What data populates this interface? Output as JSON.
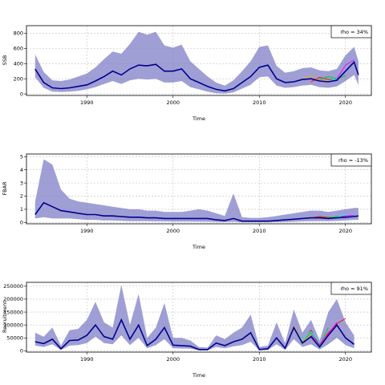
{
  "colors": {
    "band": "#7f7fc8",
    "median": "#00008b",
    "grid": "#bfbfbf",
    "peels": [
      "#ff0000",
      "#00cd00",
      "#00ffff",
      "#ff00ff",
      "#ffa500",
      "#9400d3"
    ]
  },
  "chart_data": [
    {
      "type": "line",
      "ylabel": "SSB",
      "xlabel": "Time",
      "rho_label": "rho = 34%",
      "xlim": [
        1983,
        2023
      ],
      "ylim": [
        -20,
        900
      ],
      "xticks": [
        "1990",
        "2000",
        "2010",
        "2020"
      ],
      "yticks": [
        "0",
        "200",
        "400",
        "600",
        "800"
      ],
      "legend_position": "top-right",
      "grid": true,
      "series": [
        {
          "x": [
            1984.0,
            1985.0,
            1986.0,
            1987.0,
            1988.0,
            1989.0,
            1990.0,
            1991.0,
            1992.0,
            1993.0,
            1994.0,
            1995.0,
            1996.0,
            1997.0,
            1998.0,
            1999.0,
            2000.0,
            2001.0,
            2002.0,
            2003.0,
            2004.0,
            2005.0,
            2006.0,
            2007.0,
            2008.0,
            2009.0,
            2010.0,
            2011.0,
            2012.0,
            2013.0,
            2014.0,
            2015.0,
            2016.0,
            2017.0,
            2018.0,
            2019.0,
            2020.0,
            2021.0,
            2021.5
          ],
          "median": [
            330,
            150,
            80,
            70,
            80,
            100,
            120,
            170,
            230,
            300,
            250,
            330,
            380,
            370,
            390,
            300,
            300,
            330,
            200,
            150,
            100,
            60,
            40,
            70,
            150,
            230,
            350,
            380,
            200,
            150,
            160,
            190,
            200,
            170,
            160,
            180,
            300,
            420,
            250
          ],
          "upper": [
            520,
            290,
            180,
            170,
            190,
            230,
            270,
            350,
            460,
            560,
            530,
            660,
            820,
            780,
            820,
            640,
            610,
            650,
            430,
            330,
            230,
            150,
            110,
            180,
            300,
            430,
            620,
            640,
            370,
            280,
            300,
            340,
            350,
            310,
            300,
            330,
            510,
            620,
            430
          ],
          "lower": [
            220,
            80,
            30,
            25,
            30,
            40,
            60,
            90,
            130,
            170,
            130,
            180,
            200,
            190,
            200,
            150,
            150,
            170,
            90,
            60,
            30,
            10,
            5,
            20,
            70,
            120,
            220,
            230,
            110,
            80,
            90,
            110,
            120,
            90,
            80,
            100,
            170,
            250,
            120
          ]
        }
      ],
      "peels": [
        {
          "x": [
            2016.0,
            2017.0,
            2018.0,
            2019.0
          ],
          "values": [
            160,
            220,
            190,
            200
          ]
        },
        {
          "x": [
            2017.0,
            2018.0,
            2019.0,
            2020.0
          ],
          "values": [
            190,
            230,
            200,
            240
          ]
        },
        {
          "x": [
            2018.0,
            2019.0,
            2020.0
          ],
          "values": [
            210,
            190,
            300
          ]
        },
        {
          "x": [
            2019.0,
            2020.0,
            2021.0
          ],
          "values": [
            200,
            380,
            450
          ]
        },
        {
          "x": [
            2015.0,
            2016.0,
            2017.0,
            2018.0
          ],
          "values": [
            200,
            240,
            170,
            180
          ]
        }
      ]
    },
    {
      "type": "line",
      "ylabel": "FBAR",
      "xlabel": "Time",
      "rho_label": "rho = -13%",
      "xlim": [
        1983,
        2023
      ],
      "ylim": [
        -0.1,
        5.2
      ],
      "xticks": [
        "1990",
        "2000",
        "2010",
        "2020"
      ],
      "yticks": [
        "0",
        "1",
        "2",
        "3",
        "4",
        "5"
      ],
      "legend_position": "top-right",
      "grid": true,
      "series": [
        {
          "x": [
            1984.0,
            1985.0,
            1986.0,
            1987.0,
            1988.0,
            1989.0,
            1990.0,
            1991.0,
            1992.0,
            1993.0,
            1994.0,
            1995.0,
            1996.0,
            1997.0,
            1998.0,
            1999.0,
            2000.0,
            2001.0,
            2002.0,
            2003.0,
            2004.0,
            2005.0,
            2006.0,
            2007.0,
            2008.0,
            2009.0,
            2010.0,
            2011.0,
            2012.0,
            2013.0,
            2014.0,
            2015.0,
            2016.0,
            2017.0,
            2018.0,
            2019.0,
            2020.0,
            2021.0,
            2021.5
          ],
          "median": [
            0.6,
            1.5,
            1.2,
            0.9,
            0.8,
            0.7,
            0.6,
            0.6,
            0.5,
            0.5,
            0.45,
            0.4,
            0.4,
            0.35,
            0.35,
            0.3,
            0.3,
            0.3,
            0.3,
            0.3,
            0.3,
            0.2,
            0.15,
            0.3,
            0.1,
            0.1,
            0.1,
            0.1,
            0.15,
            0.2,
            0.25,
            0.3,
            0.35,
            0.35,
            0.3,
            0.35,
            0.4,
            0.45,
            0.5
          ],
          "upper": [
            1.6,
            4.8,
            4.4,
            2.5,
            1.8,
            1.6,
            1.5,
            1.4,
            1.3,
            1.2,
            1.1,
            1.0,
            1.0,
            0.9,
            0.9,
            0.8,
            0.8,
            0.8,
            0.9,
            1.0,
            0.9,
            0.7,
            0.5,
            2.2,
            0.4,
            0.35,
            0.35,
            0.4,
            0.5,
            0.6,
            0.7,
            0.8,
            0.9,
            0.9,
            0.8,
            0.9,
            1.0,
            1.1,
            1.1
          ],
          "lower": [
            0.3,
            0.4,
            0.3,
            0.3,
            0.3,
            0.25,
            0.2,
            0.2,
            0.15,
            0.15,
            0.12,
            0.1,
            0.1,
            0.1,
            0.08,
            0.08,
            0.07,
            0.07,
            0.07,
            0.06,
            0.06,
            0.04,
            0.02,
            0.05,
            0.01,
            0.01,
            0.01,
            0.01,
            0.02,
            0.03,
            0.05,
            0.08,
            0.1,
            0.1,
            0.1,
            0.12,
            0.15,
            0.2,
            0.2
          ]
        }
      ],
      "peels": [
        {
          "x": [
            2016.0,
            2017.0,
            2018.0,
            2019.0
          ],
          "values": [
            0.35,
            0.45,
            0.38,
            0.4
          ]
        },
        {
          "x": [
            2017.0,
            2018.0,
            2019.0,
            2020.0
          ],
          "values": [
            0.4,
            0.35,
            0.45,
            0.5
          ]
        },
        {
          "x": [
            2018.0,
            2019.0,
            2020.0
          ],
          "values": [
            0.3,
            0.4,
            0.6
          ]
        },
        {
          "x": [
            2019.0,
            2020.0,
            2021.0
          ],
          "values": [
            0.35,
            0.5,
            0.55
          ]
        },
        {
          "x": [
            2015.0,
            2016.0,
            2017.0,
            2018.0
          ],
          "values": [
            0.3,
            0.4,
            0.3,
            0.35
          ]
        }
      ]
    },
    {
      "type": "line",
      "ylabel": "Recruitment",
      "xlabel": "Time",
      "rho_label": "rho = 91%",
      "xlim": [
        1983,
        2023
      ],
      "ylim": [
        -5000,
        265000
      ],
      "xticks": [
        "1990",
        "2000",
        "2010",
        "2020"
      ],
      "yticks": [
        "0",
        "50000",
        "100000",
        "150000",
        "200000",
        "250000"
      ],
      "legend_position": "top-right",
      "grid": true,
      "series": [
        {
          "x": [
            1984,
            1985,
            1986,
            1987,
            1988,
            1989,
            1990,
            1991,
            1992,
            1993,
            1994,
            1995,
            1996,
            1997,
            1998,
            1999,
            2000,
            2001,
            2002,
            2003,
            2004,
            2005,
            2006,
            2007,
            2008,
            2009,
            2010,
            2011,
            2012,
            2013,
            2014,
            2015,
            2016,
            2017,
            2018,
            2019,
            2020,
            2021
          ],
          "median": [
            35000,
            28000,
            45000,
            8000,
            40000,
            42000,
            60000,
            100000,
            55000,
            45000,
            120000,
            45000,
            100000,
            20000,
            45000,
            90000,
            22000,
            20000,
            18000,
            5000,
            5000,
            30000,
            20000,
            35000,
            45000,
            70000,
            5000,
            8000,
            50000,
            10000,
            90000,
            30000,
            55000,
            15000,
            60000,
            100000,
            50000,
            25000
          ],
          "upper": [
            70000,
            55000,
            90000,
            20000,
            80000,
            85000,
            120000,
            190000,
            110000,
            90000,
            255000,
            100000,
            220000,
            50000,
            90000,
            185000,
            50000,
            50000,
            40000,
            15000,
            12000,
            60000,
            45000,
            70000,
            90000,
            140000,
            15000,
            20000,
            110000,
            30000,
            160000,
            70000,
            120000,
            40000,
            150000,
            200000,
            110000,
            60000
          ],
          "lower": [
            20000,
            15000,
            25000,
            3000,
            20000,
            22000,
            30000,
            55000,
            30000,
            25000,
            60000,
            22000,
            50000,
            10000,
            22000,
            45000,
            10000,
            9000,
            8000,
            2000,
            2000,
            15000,
            10000,
            17000,
            22000,
            35000,
            2000,
            3000,
            25000,
            4000,
            45000,
            15000,
            25000,
            5000,
            25000,
            50000,
            22000,
            10000
          ]
        }
      ],
      "peels": [
        {
          "x": [
            2015,
            2016,
            2017,
            2018,
            2019,
            2020
          ],
          "values": [
            30000,
            80000,
            20000,
            70000,
            105000,
            125000
          ]
        },
        {
          "x": [
            2015,
            2016,
            2017,
            2018
          ],
          "values": [
            35000,
            70000,
            18000,
            90000
          ]
        },
        {
          "x": [
            2014,
            2015,
            2016,
            2017
          ],
          "values": [
            90000,
            40000,
            75000,
            30000
          ]
        },
        {
          "x": [
            2016,
            2017,
            2018,
            2019
          ],
          "values": [
            60000,
            25000,
            65000,
            110000
          ]
        },
        {
          "x": [
            2013,
            2014,
            2015,
            2016
          ],
          "values": [
            10000,
            95000,
            35000,
            65000
          ]
        }
      ]
    }
  ]
}
